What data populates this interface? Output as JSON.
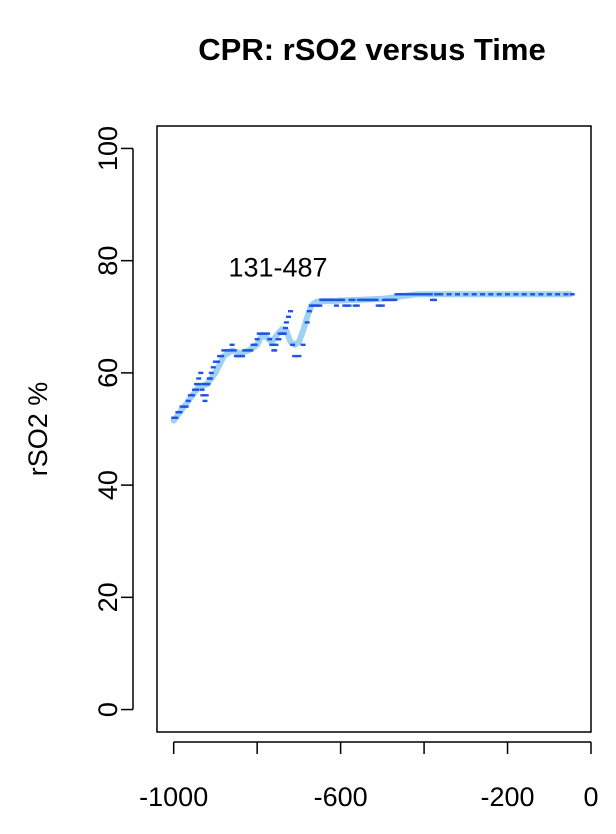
{
  "chart_data": {
    "type": "scatter",
    "title": "CPR: rSO2 versus Time",
    "xlabel": "",
    "ylabel": "rSO2 %",
    "xlim": [
      -1040,
      0
    ],
    "ylim": [
      -4,
      104
    ],
    "xticks": [
      -1000,
      -800,
      -600,
      -400,
      -200,
      0
    ],
    "xtick_labels": [
      "-1000",
      "",
      "-600",
      "",
      "-200",
      "0"
    ],
    "yticks": [
      0,
      20,
      40,
      60,
      80,
      100
    ],
    "ytick_labels": [
      "0",
      "20",
      "40",
      "60",
      "80",
      "100"
    ],
    "grid": false,
    "legend": "none",
    "annotation": {
      "text": "131-487",
      "x": -750,
      "y": 79
    },
    "series": [
      {
        "role": "smoothed",
        "color": "#9fd0f5",
        "x": [
          -1000,
          -980,
          -960,
          -940,
          -920,
          -900,
          -880,
          -860,
          -840,
          -820,
          -800,
          -790,
          -780,
          -765,
          -750,
          -740,
          -730,
          -720,
          -710,
          -700,
          -690,
          -680,
          -670,
          -660,
          -650,
          -640,
          -620,
          -600,
          -560,
          -500,
          -440,
          -420,
          -380,
          -300,
          -200,
          -100,
          -50
        ],
        "y": [
          51.5,
          53.5,
          55.5,
          57.5,
          58.0,
          60.0,
          63.0,
          64.0,
          63.5,
          64.0,
          65.0,
          66.5,
          66.5,
          65.5,
          67.0,
          67.8,
          67.5,
          65.5,
          65.0,
          65.5,
          67.5,
          70.0,
          72.0,
          72.6,
          72.8,
          72.8,
          72.8,
          72.9,
          73.0,
          73.2,
          73.8,
          74.0,
          74.0,
          74.0,
          74.0,
          74.0,
          74.0
        ]
      },
      {
        "role": "raw",
        "color": "#1f55e0",
        "x": [
          -1000,
          -995,
          -990,
          -985,
          -980,
          -975,
          -970,
          -965,
          -960,
          -955,
          -950,
          -945,
          -945,
          -940,
          -940,
          -935,
          -932,
          -930,
          -928,
          -925,
          -922,
          -920,
          -918,
          -915,
          -912,
          -910,
          -905,
          -900,
          -895,
          -890,
          -885,
          -880,
          -875,
          -870,
          -865,
          -860,
          -855,
          -850,
          -845,
          -840,
          -835,
          -830,
          -825,
          -820,
          -815,
          -810,
          -805,
          -800,
          -795,
          -790,
          -785,
          -780,
          -775,
          -770,
          -765,
          -760,
          -758,
          -755,
          -750,
          -748,
          -745,
          -742,
          -740,
          -738,
          -735,
          -732,
          -730,
          -725,
          -720,
          -715,
          -710,
          -700,
          -690,
          -680,
          -675,
          -670,
          -665,
          -660,
          -655,
          -650,
          -645,
          -640,
          -635,
          -630,
          -625,
          -620,
          -615,
          -610,
          -605,
          -600,
          -595,
          -590,
          -585,
          -580,
          -575,
          -570,
          -565,
          -560,
          -555,
          -550,
          -545,
          -540,
          -535,
          -530,
          -525,
          -520,
          -515,
          -510,
          -505,
          -500,
          -495,
          -490,
          -485,
          -480,
          -475,
          -470,
          -465,
          -460,
          -455,
          -450,
          -445,
          -440,
          -430,
          -420,
          -410,
          -400,
          -390,
          -385,
          -380,
          -375,
          -370,
          -360,
          -340,
          -320,
          -300,
          -280,
          -260,
          -240,
          -220,
          -200,
          -180,
          -160,
          -140,
          -120,
          -100,
          -80,
          -60,
          -45
        ],
        "y": [
          52,
          52,
          53,
          53,
          54,
          54,
          54,
          55,
          56,
          56,
          57,
          57,
          58,
          58,
          59,
          60,
          57,
          56,
          58,
          55,
          56,
          58,
          58,
          59,
          59,
          60,
          61,
          62,
          62,
          63,
          63,
          64,
          64,
          64,
          64,
          65,
          64,
          63,
          63,
          63,
          63,
          64,
          64,
          64,
          64,
          65,
          65,
          66,
          67,
          67,
          67,
          67,
          67,
          66,
          65,
          64,
          64,
          65,
          66,
          66,
          67,
          67,
          67,
          67,
          67,
          68,
          69,
          70,
          71,
          65,
          63,
          63,
          65,
          69,
          71,
          72,
          72,
          72,
          72,
          72,
          73,
          73,
          73,
          73,
          73,
          73,
          73,
          72,
          73,
          73,
          73,
          72,
          72,
          72,
          73,
          73,
          72,
          72,
          73,
          73,
          73,
          73,
          73,
          73,
          73,
          73,
          73,
          72,
          72,
          72,
          73,
          73,
          73,
          73,
          73,
          73,
          74,
          74,
          74,
          74,
          74,
          74,
          74,
          74,
          74,
          74,
          74,
          74,
          73,
          73,
          74,
          74,
          74,
          74,
          74,
          74,
          74,
          74,
          74,
          74,
          74,
          74,
          74,
          74,
          74,
          74,
          74,
          74
        ]
      }
    ]
  }
}
